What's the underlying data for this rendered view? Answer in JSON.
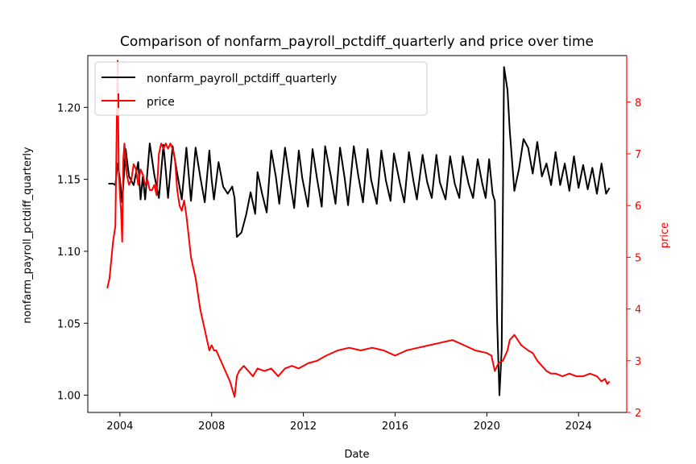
{
  "chart_data": {
    "type": "line",
    "title": "Comparison of nonfarm_payroll_pctdiff_quarterly and price over time",
    "xlabel": "Date",
    "ylabel_left": "nonfarm_payroll_pctdiff_quarterly",
    "ylabel_right": "price",
    "xlim": [
      2002.6,
      2026.1
    ],
    "ylim_left": [
      0.988,
      1.236
    ],
    "ylim_right": [
      2.0,
      8.9
    ],
    "x_ticks": [
      "2004",
      "2008",
      "2012",
      "2016",
      "2020",
      "2024"
    ],
    "y_left_ticks": [
      "1.00",
      "1.05",
      "1.10",
      "1.15",
      "1.20"
    ],
    "y_right_ticks": [
      "2",
      "3",
      "4",
      "5",
      "6",
      "7",
      "8"
    ],
    "grid": false,
    "legend_location": "upper-left",
    "colors": {
      "left_series": "#000000",
      "right_series": "#ff0000",
      "right_axis": "#ff0000"
    },
    "series": [
      {
        "name": "nonfarm_payroll_pctdiff_quarterly",
        "axis": "left",
        "color": "#000000",
        "x": [
          2003.5,
          2003.7,
          2003.8,
          2003.9,
          2004.0,
          2004.1,
          2004.25,
          2004.4,
          2004.6,
          2004.8,
          2004.9,
          2005.0,
          2005.1,
          2005.3,
          2005.5,
          2005.7,
          2005.9,
          2006.0,
          2006.1,
          2006.3,
          2006.5,
          2006.7,
          2006.9,
          2007.0,
          2007.1,
          2007.3,
          2007.5,
          2007.7,
          2007.9,
          2008.0,
          2008.1,
          2008.3,
          2008.5,
          2008.7,
          2008.9,
          2009.0,
          2009.1,
          2009.3,
          2009.5,
          2009.7,
          2009.9,
          2010.0,
          2010.2,
          2010.4,
          2010.6,
          2010.8,
          2010.95,
          2011.2,
          2011.4,
          2011.6,
          2011.8,
          2011.95,
          2012.2,
          2012.4,
          2012.6,
          2012.8,
          2012.95,
          2013.2,
          2013.4,
          2013.6,
          2013.8,
          2013.95,
          2014.2,
          2014.4,
          2014.6,
          2014.8,
          2014.95,
          2015.2,
          2015.4,
          2015.6,
          2015.8,
          2015.95,
          2016.2,
          2016.4,
          2016.6,
          2016.8,
          2016.95,
          2017.2,
          2017.4,
          2017.6,
          2017.8,
          2017.95,
          2018.2,
          2018.4,
          2018.6,
          2018.8,
          2018.95,
          2019.2,
          2019.4,
          2019.6,
          2019.8,
          2019.95,
          2020.1,
          2020.25,
          2020.35,
          2020.45,
          2020.55,
          2020.65,
          2020.75,
          2020.9,
          2021.0,
          2021.2,
          2021.4,
          2021.6,
          2021.8,
          2022.0,
          2022.2,
          2022.4,
          2022.6,
          2022.8,
          2023.0,
          2023.2,
          2023.4,
          2023.6,
          2023.8,
          2024.0,
          2024.2,
          2024.4,
          2024.6,
          2024.8,
          2025.0,
          2025.2,
          2025.35
        ],
        "values": [
          1.147,
          1.147,
          1.146,
          1.161,
          1.15,
          1.134,
          1.171,
          1.152,
          1.146,
          1.162,
          1.136,
          1.152,
          1.136,
          1.175,
          1.153,
          1.137,
          1.174,
          1.156,
          1.137,
          1.173,
          1.154,
          1.136,
          1.172,
          1.153,
          1.135,
          1.172,
          1.152,
          1.134,
          1.17,
          1.15,
          1.136,
          1.162,
          1.145,
          1.14,
          1.145,
          1.137,
          1.11,
          1.113,
          1.125,
          1.141,
          1.126,
          1.155,
          1.14,
          1.127,
          1.17,
          1.152,
          1.133,
          1.172,
          1.15,
          1.13,
          1.17,
          1.151,
          1.131,
          1.171,
          1.15,
          1.131,
          1.173,
          1.152,
          1.133,
          1.172,
          1.151,
          1.132,
          1.173,
          1.152,
          1.134,
          1.171,
          1.15,
          1.133,
          1.17,
          1.149,
          1.135,
          1.168,
          1.148,
          1.134,
          1.169,
          1.149,
          1.136,
          1.167,
          1.148,
          1.137,
          1.167,
          1.148,
          1.136,
          1.166,
          1.147,
          1.137,
          1.166,
          1.147,
          1.137,
          1.164,
          1.147,
          1.137,
          1.164,
          1.14,
          1.135,
          1.05,
          1.0,
          1.032,
          1.228,
          1.212,
          1.184,
          1.142,
          1.157,
          1.178,
          1.172,
          1.154,
          1.176,
          1.152,
          1.161,
          1.146,
          1.169,
          1.146,
          1.161,
          1.142,
          1.166,
          1.144,
          1.16,
          1.143,
          1.158,
          1.14,
          1.161,
          1.14,
          1.144
        ]
      },
      {
        "name": "price",
        "axis": "right",
        "color": "#ff0000",
        "x": [
          2003.45,
          2003.55,
          2003.7,
          2003.8,
          2003.9,
          2003.95,
          2004.0,
          2004.05,
          2004.1,
          2004.15,
          2004.2,
          2004.3,
          2004.4,
          2004.5,
          2004.6,
          2004.7,
          2004.8,
          2004.9,
          2005.0,
          2005.1,
          2005.2,
          2005.3,
          2005.4,
          2005.5,
          2005.6,
          2005.7,
          2005.8,
          2005.9,
          2006.0,
          2006.1,
          2006.2,
          2006.3,
          2006.4,
          2006.5,
          2006.6,
          2006.7,
          2006.8,
          2006.9,
          2007.0,
          2007.1,
          2007.3,
          2007.5,
          2007.7,
          2007.8,
          2007.9,
          2008.0,
          2008.1,
          2008.2,
          2008.4,
          2008.6,
          2008.8,
          2009.0,
          2009.1,
          2009.2,
          2009.4,
          2009.6,
          2009.8,
          2010.0,
          2010.3,
          2010.6,
          2010.9,
          2011.2,
          2011.5,
          2011.8,
          2012.2,
          2012.6,
          2013.0,
          2013.5,
          2014.0,
          2014.5,
          2015.0,
          2015.5,
          2016.0,
          2016.5,
          2017.0,
          2017.5,
          2018.0,
          2018.5,
          2019.0,
          2019.5,
          2020.0,
          2020.2,
          2020.35,
          2020.5,
          2020.7,
          2020.9,
          2021.0,
          2021.2,
          2021.5,
          2021.8,
          2022.0,
          2022.2,
          2022.4,
          2022.6,
          2022.8,
          2023.0,
          2023.3,
          2023.6,
          2023.9,
          2024.2,
          2024.5,
          2024.8,
          2025.0,
          2025.15,
          2025.25,
          2025.35
        ],
        "values": [
          4.4,
          4.6,
          5.3,
          5.6,
          8.8,
          6.7,
          6.2,
          5.9,
          5.3,
          6.9,
          7.2,
          6.6,
          6.4,
          6.5,
          6.8,
          6.7,
          6.4,
          6.7,
          6.6,
          6.4,
          6.5,
          6.3,
          6.3,
          6.4,
          6.2,
          7.0,
          7.2,
          7.1,
          7.2,
          7.1,
          7.2,
          7.1,
          6.9,
          6.3,
          6.0,
          5.9,
          6.1,
          5.8,
          5.4,
          5.0,
          4.6,
          4.0,
          3.6,
          3.4,
          3.2,
          3.3,
          3.2,
          3.2,
          3.0,
          2.8,
          2.6,
          2.3,
          2.7,
          2.8,
          2.9,
          2.8,
          2.7,
          2.85,
          2.8,
          2.85,
          2.7,
          2.85,
          2.9,
          2.85,
          2.95,
          3.0,
          3.1,
          3.2,
          3.25,
          3.2,
          3.25,
          3.2,
          3.1,
          3.2,
          3.25,
          3.3,
          3.35,
          3.4,
          3.3,
          3.2,
          3.15,
          3.1,
          2.8,
          2.95,
          3.0,
          3.2,
          3.4,
          3.5,
          3.3,
          3.2,
          3.15,
          3.0,
          2.9,
          2.8,
          2.75,
          2.75,
          2.7,
          2.75,
          2.7,
          2.7,
          2.75,
          2.7,
          2.6,
          2.65,
          2.55,
          2.6
        ]
      }
    ]
  }
}
